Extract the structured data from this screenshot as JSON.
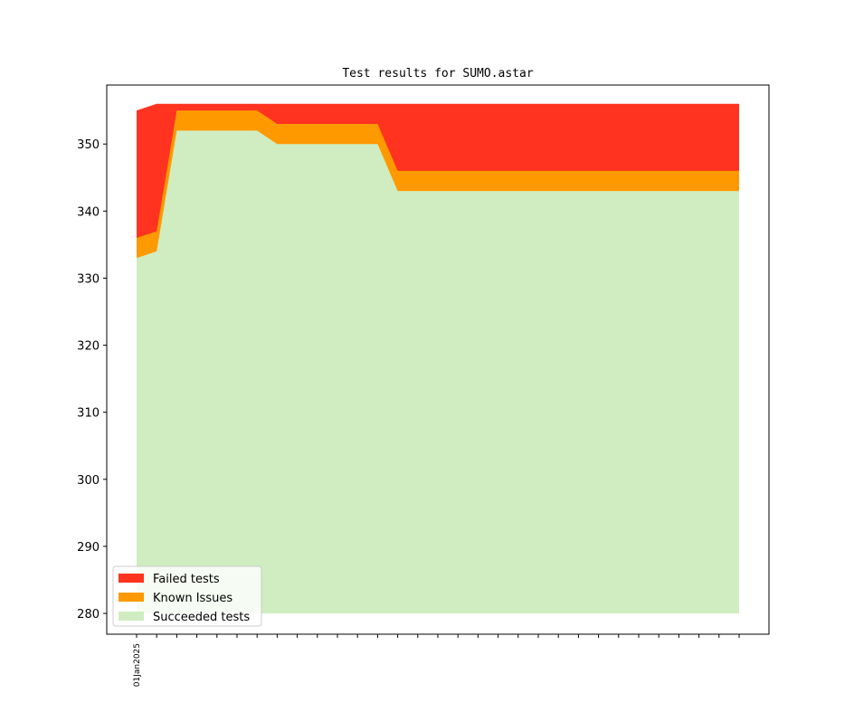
{
  "chart_data": {
    "type": "area",
    "title": "Test results for SUMO.astar",
    "xlabel": "",
    "ylabel": "",
    "ylim": [
      276.9,
      358.8
    ],
    "yticks": [
      280,
      290,
      300,
      310,
      320,
      330,
      340,
      350
    ],
    "x_tick_count": 31,
    "x_tick_labels": [
      {
        "index": 0,
        "label": "01Jan2025"
      }
    ],
    "stacked_totals": [
      {
        "name": "Succeeded tests",
        "color": "#cfedc0",
        "values": [
          333,
          334,
          352,
          352,
          352,
          352,
          352,
          350,
          350,
          350,
          350,
          350,
          350,
          343,
          343,
          343,
          343,
          343,
          343,
          343,
          343,
          343,
          343,
          343,
          343,
          343,
          343,
          343,
          343,
          343,
          343
        ]
      },
      {
        "name": "Known Issues",
        "color": "#ff9900",
        "values": [
          336,
          337,
          355,
          355,
          355,
          355,
          355,
          353,
          353,
          353,
          353,
          353,
          353,
          346,
          346,
          346,
          346,
          346,
          346,
          346,
          346,
          346,
          346,
          346,
          346,
          346,
          346,
          346,
          346,
          346,
          346
        ]
      },
      {
        "name": "Failed tests",
        "color": "#ff3320",
        "values": [
          355,
          356,
          356,
          356,
          356,
          356,
          356,
          356,
          356,
          356,
          356,
          356,
          356,
          356,
          356,
          356,
          356,
          356,
          356,
          356,
          356,
          356,
          356,
          356,
          356,
          356,
          356,
          356,
          356,
          356,
          356
        ]
      }
    ],
    "baseline": 280,
    "grid": false,
    "legend": {
      "placement": "lower-left",
      "entries": [
        {
          "label": "Failed tests",
          "color": "#ff3320"
        },
        {
          "label": "Known Issues",
          "color": "#ff9900"
        },
        {
          "label": "Succeeded tests",
          "color": "#cfedc0"
        }
      ]
    }
  }
}
